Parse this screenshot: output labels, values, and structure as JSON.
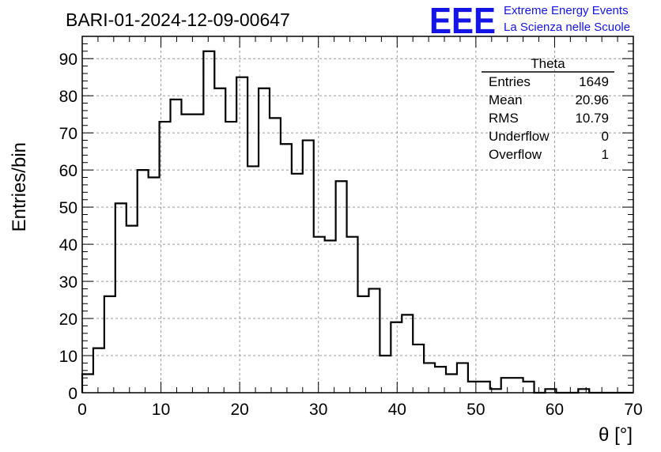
{
  "chart_data": {
    "type": "histogram",
    "title": "BARI-01-2024-12-09-00647",
    "xlabel": "θ [°]",
    "ylabel": "Entries/bin",
    "xlim": [
      0,
      70
    ],
    "ylim": [
      0,
      96
    ],
    "x_ticks": [
      0,
      10,
      20,
      30,
      40,
      50,
      60,
      70
    ],
    "y_ticks": [
      0,
      10,
      20,
      30,
      40,
      50,
      60,
      70,
      80,
      90
    ],
    "grid": true,
    "bin_width": 1.4,
    "bin_start": 0,
    "values": [
      5,
      12,
      26,
      51,
      45,
      60,
      58,
      73,
      79,
      75,
      75,
      92,
      82,
      73,
      85,
      61,
      82,
      74,
      67,
      59,
      68,
      42,
      41,
      57,
      42,
      26,
      28,
      10,
      19,
      21,
      13,
      8,
      7,
      5,
      8,
      3,
      3,
      1,
      4,
      4,
      3,
      0,
      1,
      0,
      0,
      1,
      0,
      0,
      0,
      0
    ],
    "stats": {
      "name": "Theta",
      "rows": [
        {
          "label": "Entries",
          "value": "1649"
        },
        {
          "label": "Mean",
          "value": "20.96"
        },
        {
          "label": "RMS",
          "value": "10.79"
        },
        {
          "label": "Underflow",
          "value": "0"
        },
        {
          "label": "Overflow",
          "value": "1"
        }
      ]
    }
  },
  "logo": {
    "letters": "EEE",
    "line1": "Extreme Energy Events",
    "line2": "La Scienza nelle Scuole",
    "color": "#1414e6"
  }
}
